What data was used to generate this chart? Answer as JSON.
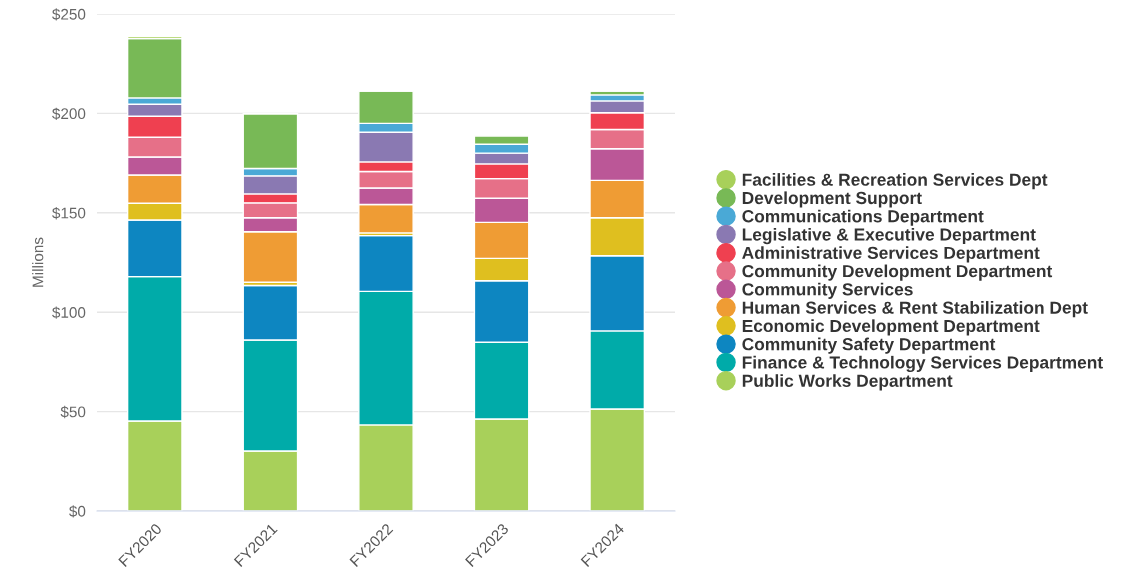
{
  "chart_data": {
    "type": "bar",
    "stacked": true,
    "ylabel": "Millions",
    "categories": [
      "FY2020",
      "FY2021",
      "FY2022",
      "FY2023",
      "FY2024"
    ],
    "series": [
      {
        "name": "Public Works Department",
        "color": "#a8d05a",
        "values": [
          45.3,
          30.2,
          43.3,
          46.3,
          51.3
        ]
      },
      {
        "name": "Finance & Technology Services Department",
        "color": "#00aba9",
        "values": [
          72.6,
          55.8,
          67.2,
          38.6,
          39.3
        ]
      },
      {
        "name": "Community Safety Department",
        "color": "#0d86c1",
        "values": [
          28.5,
          27.4,
          28.0,
          30.9,
          37.8
        ]
      },
      {
        "name": "Economic Development Department",
        "color": "#dfbf1f",
        "values": [
          8.4,
          1.7,
          1.4,
          11.3,
          19.1
        ]
      },
      {
        "name": "Human Services & Rent Stabilization Dept",
        "color": "#ef9c34",
        "values": [
          14.2,
          25.4,
          14.3,
          18.1,
          18.8
        ]
      },
      {
        "name": "Community Services",
        "color": "#bb5797",
        "values": [
          9.1,
          7.0,
          8.3,
          12.1,
          15.9
        ]
      },
      {
        "name": "Community Development Department",
        "color": "#e67088",
        "values": [
          9.9,
          7.5,
          8.3,
          9.9,
          9.7
        ]
      },
      {
        "name": "Administrative Services Department",
        "color": "#ef4050",
        "values": [
          10.6,
          4.5,
          4.8,
          7.4,
          8.4
        ]
      },
      {
        "name": "Legislative & Executive Department",
        "color": "#8a79b2",
        "values": [
          6.0,
          9.1,
          14.9,
          5.4,
          6.0
        ]
      },
      {
        "name": "Communications Department",
        "color": "#4aa9d6",
        "values": [
          3.2,
          3.7,
          4.5,
          4.5,
          3.0
        ]
      },
      {
        "name": "Development Support",
        "color": "#78b956",
        "values": [
          29.8,
          27.5,
          16.2,
          4.2,
          1.9
        ]
      },
      {
        "name": "Facilities & Recreation Services Dept",
        "color": "#a8d05a",
        "values": [
          1.0,
          null,
          null,
          null,
          null
        ]
      }
    ],
    "ylim": [
      0,
      250
    ],
    "yticks": [
      {
        "value": 0,
        "label": "$0"
      },
      {
        "value": 50,
        "label": "$50"
      },
      {
        "value": 100,
        "label": "$100"
      },
      {
        "value": 150,
        "label": "$150"
      },
      {
        "value": 200,
        "label": "$200"
      },
      {
        "value": 250,
        "label": "$250"
      }
    ],
    "grid": "y",
    "legend": "right"
  }
}
